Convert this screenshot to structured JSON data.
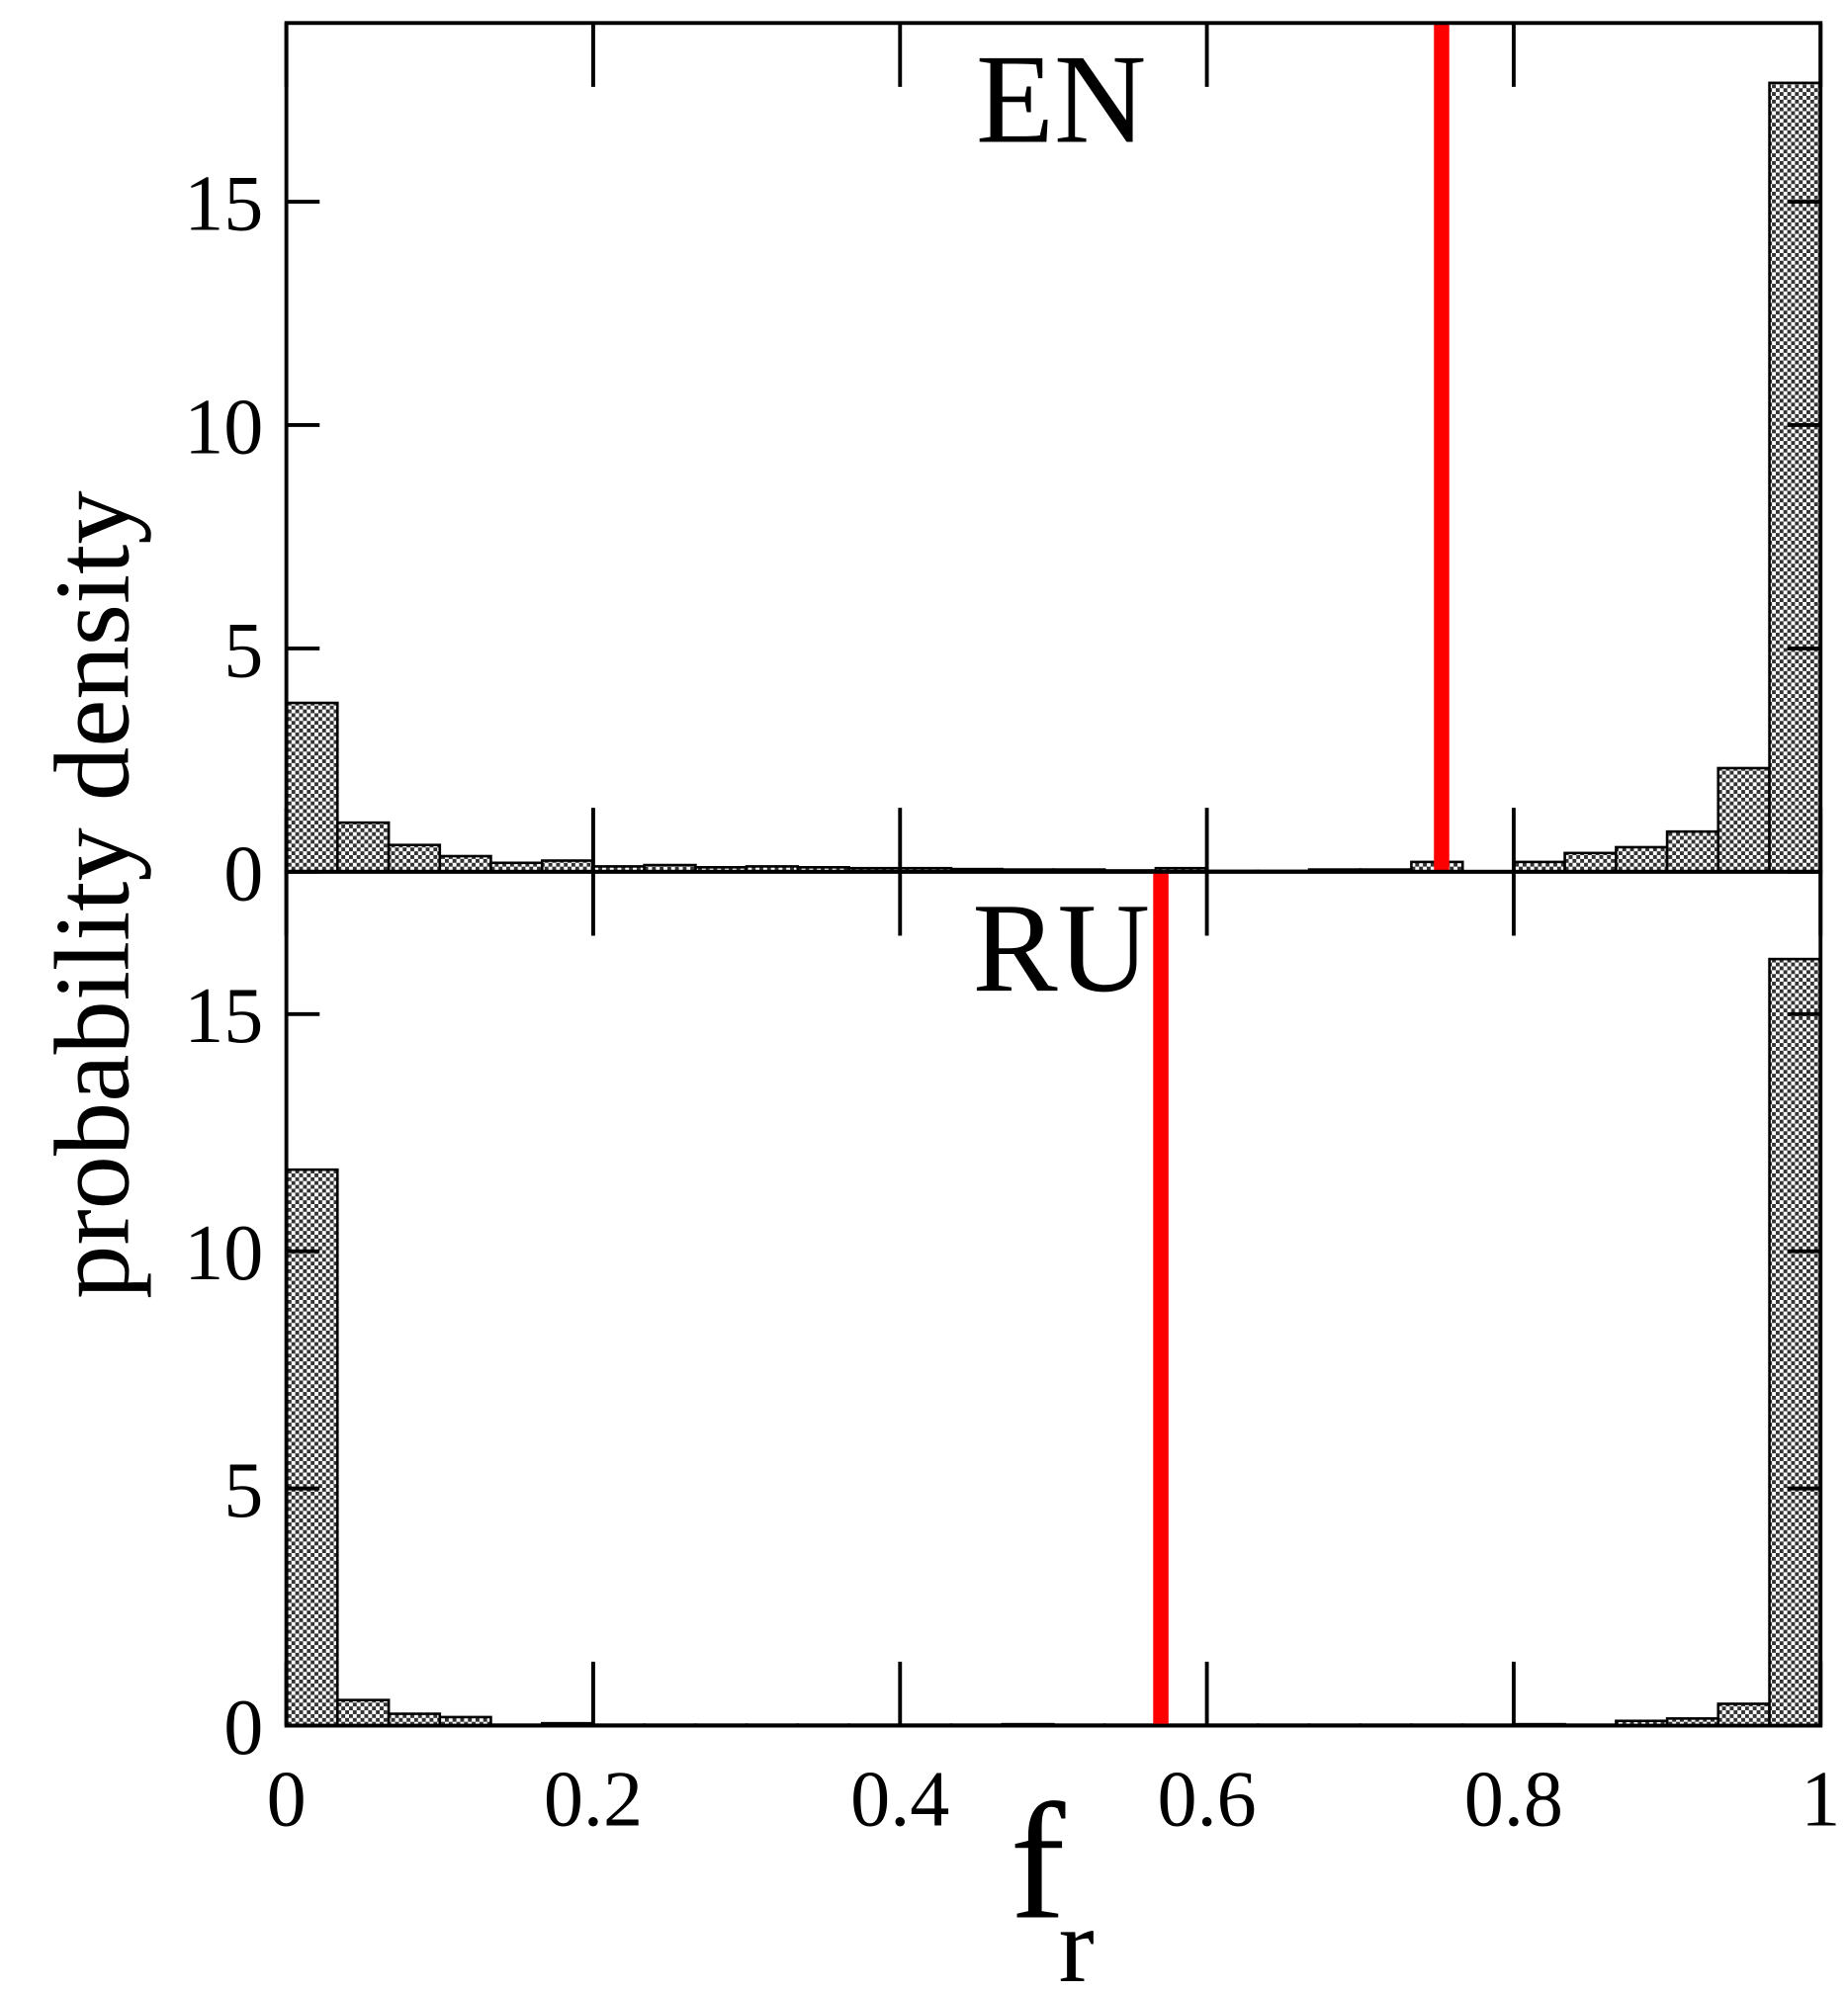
{
  "chart_data": [
    {
      "type": "histogram",
      "title": "EN",
      "ylabel": "probability density",
      "bins": [
        0,
        0.0333,
        0.0667,
        0.1,
        0.1333,
        0.1667,
        0.2,
        0.2333,
        0.2667,
        0.3,
        0.3333,
        0.3667,
        0.4,
        0.4333,
        0.4667,
        0.5,
        0.5333,
        0.5667,
        0.6,
        0.6333,
        0.6667,
        0.7,
        0.7333,
        0.7667,
        0.8,
        0.8333,
        0.8667,
        0.9,
        0.9333,
        0.9667,
        1
      ],
      "values": [
        3.78,
        1.1,
        0.6,
        0.35,
        0.2,
        0.25,
        0.12,
        0.15,
        0.1,
        0.12,
        0.1,
        0.08,
        0.08,
        0.06,
        0.05,
        0.05,
        0.03,
        0.08,
        0.02,
        0.02,
        0.05,
        0.05,
        0.22,
        0,
        0.22,
        0.42,
        0.55,
        0.9,
        2.32,
        17.66
      ],
      "color": "#888888",
      "vline": 0.753,
      "vline_color": "#ff0000",
      "xlim": [
        0,
        1
      ],
      "xticks": [
        0,
        0.2,
        0.4,
        0.6,
        0.8,
        1
      ],
      "ylim": [
        0,
        19
      ],
      "yticks": [
        0,
        5,
        10,
        15
      ]
    },
    {
      "type": "histogram",
      "title": "RU",
      "xlabel": "f",
      "xlabel_sub": "r",
      "bins": [
        0,
        0.0333,
        0.0667,
        0.1,
        0.1333,
        0.1667,
        0.2,
        0.2333,
        0.2667,
        0.3,
        0.3333,
        0.3667,
        0.4,
        0.4333,
        0.4667,
        0.5,
        0.5333,
        0.5667,
        0.6,
        0.6333,
        0.6667,
        0.7,
        0.7333,
        0.7667,
        0.8,
        0.8333,
        0.8667,
        0.9,
        0.9333,
        0.9667,
        1
      ],
      "values": [
        11.72,
        0.54,
        0.25,
        0.18,
        0.02,
        0.05,
        0.02,
        0.02,
        0.02,
        0.02,
        0.02,
        0.02,
        0.02,
        0.02,
        0.03,
        0.02,
        0.02,
        0.02,
        0.02,
        0.02,
        0.02,
        0.02,
        0.02,
        0.02,
        0.03,
        0.02,
        0.1,
        0.15,
        0.46,
        16.16
      ],
      "color": "#888888",
      "vline": 0.57,
      "vline_color": "#ff0000",
      "xlim": [
        0,
        1
      ],
      "xticks": [
        0,
        0.2,
        0.4,
        0.6,
        0.8,
        1
      ],
      "ylim": [
        0,
        18
      ],
      "yticks": [
        0,
        5,
        10,
        15
      ]
    }
  ]
}
